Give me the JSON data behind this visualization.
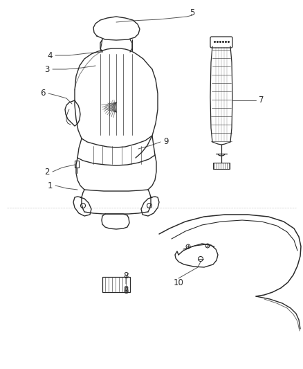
{
  "bg_color": "#ffffff",
  "line_color": "#2a2a2a",
  "label_color": "#2a2a2a",
  "label_fontsize": 8.5,
  "fig_width": 4.38,
  "fig_height": 5.33,
  "dpi": 100
}
